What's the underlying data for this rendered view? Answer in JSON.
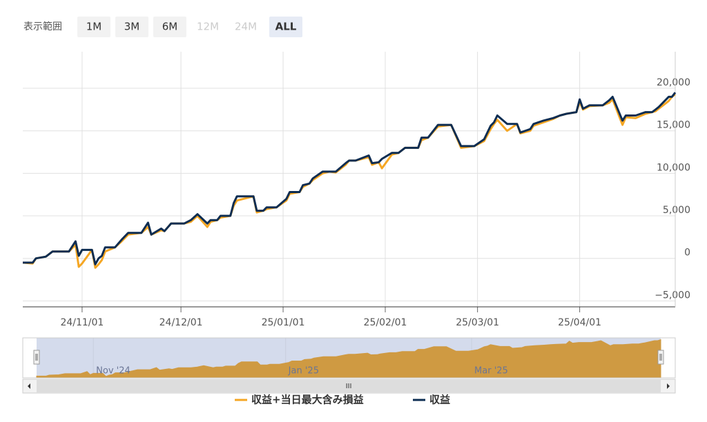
{
  "range_selector": {
    "label": "表示範囲",
    "buttons": [
      {
        "text": "1M",
        "state": "enabled"
      },
      {
        "text": "3M",
        "state": "enabled"
      },
      {
        "text": "6M",
        "state": "enabled"
      },
      {
        "text": "12M",
        "state": "disabled"
      },
      {
        "text": "24M",
        "state": "disabled"
      },
      {
        "text": "ALL",
        "state": "selected"
      }
    ]
  },
  "chart_data": {
    "type": "line",
    "x": [
      "2024-10-14",
      "2024-10-17",
      "2024-10-18",
      "2024-10-21",
      "2024-10-23",
      "2024-10-28",
      "2024-10-30",
      "2024-10-31",
      "2024-11-01",
      "2024-11-04",
      "2024-11-05",
      "2024-11-06",
      "2024-11-07",
      "2024-11-08",
      "2024-11-11",
      "2024-11-13",
      "2024-11-15",
      "2024-11-19",
      "2024-11-21",
      "2024-11-22",
      "2024-11-25",
      "2024-11-26",
      "2024-11-28",
      "2024-12-02",
      "2024-12-04",
      "2024-12-06",
      "2024-12-09",
      "2024-12-10",
      "2024-12-12",
      "2024-12-13",
      "2024-12-16",
      "2024-12-17",
      "2024-12-18",
      "2024-12-23",
      "2024-12-24",
      "2024-12-26",
      "2024-12-27",
      "2024-12-30",
      "2025-01-02",
      "2025-01-03",
      "2025-01-06",
      "2025-01-07",
      "2025-01-09",
      "2025-01-10",
      "2025-01-13",
      "2025-01-15",
      "2025-01-17",
      "2025-01-20",
      "2025-01-21",
      "2025-01-23",
      "2025-01-27",
      "2025-01-28",
      "2025-01-30",
      "2025-01-31",
      "2025-02-03",
      "2025-02-05",
      "2025-02-07",
      "2025-02-11",
      "2025-02-12",
      "2025-02-14",
      "2025-02-17",
      "2025-02-21",
      "2025-02-24",
      "2025-02-28",
      "2025-03-03",
      "2025-03-05",
      "2025-03-06",
      "2025-03-07",
      "2025-03-10",
      "2025-03-13",
      "2025-03-14",
      "2025-03-17",
      "2025-03-18",
      "2025-03-21",
      "2025-03-24",
      "2025-03-26",
      "2025-03-28",
      "2025-03-31",
      "2025-04-01",
      "2025-04-02",
      "2025-04-04",
      "2025-04-08",
      "2025-04-10",
      "2025-04-11",
      "2025-04-14",
      "2025-04-15",
      "2025-04-18",
      "2025-04-21",
      "2025-04-23",
      "2025-04-24",
      "2025-04-25",
      "2025-04-28",
      "2025-04-29",
      "2025-04-30"
    ],
    "series": [
      {
        "name": "収益+当日最大含み損益",
        "color": "#f5a623",
        "values": [
          -500,
          -600,
          0,
          200,
          800,
          800,
          1600,
          -1000,
          -600,
          1000,
          -1100,
          -700,
          -200,
          800,
          1300,
          2000,
          2800,
          3000,
          3700,
          2800,
          3300,
          3200,
          4100,
          4100,
          4300,
          5000,
          3700,
          4300,
          4500,
          4800,
          5000,
          6200,
          6800,
          7300,
          5400,
          5600,
          5800,
          6000,
          6800,
          7600,
          7800,
          8400,
          8800,
          9200,
          10000,
          10200,
          10100,
          11000,
          11500,
          11500,
          11900,
          11000,
          11300,
          10600,
          12200,
          12400,
          13000,
          13000,
          13900,
          14200,
          15500,
          15700,
          13000,
          13200,
          13800,
          15200,
          15800,
          16300,
          15000,
          15800,
          14700,
          15000,
          15600,
          16000,
          16400,
          16800,
          17000,
          17200,
          18400,
          17500,
          17900,
          18000,
          18300,
          18700,
          15700,
          16600,
          16500,
          17000,
          17200,
          17300,
          17600,
          18500,
          19000,
          19300
        ]
      },
      {
        "name": "収益",
        "color": "#0d2d52",
        "values": [
          -500,
          -500,
          0,
          200,
          800,
          800,
          2000,
          300,
          1000,
          1000,
          -700,
          0,
          300,
          1300,
          1300,
          2200,
          3000,
          3000,
          4200,
          2800,
          3500,
          3200,
          4100,
          4100,
          4500,
          5200,
          4100,
          4500,
          4500,
          5000,
          5000,
          6500,
          7300,
          7300,
          5600,
          5600,
          6000,
          6000,
          7000,
          7800,
          7800,
          8600,
          8800,
          9400,
          10200,
          10200,
          10200,
          11200,
          11500,
          11500,
          12100,
          11200,
          11300,
          11700,
          12400,
          12400,
          13000,
          13000,
          14200,
          14200,
          15700,
          15700,
          13200,
          13200,
          14000,
          15600,
          16000,
          16800,
          15800,
          15800,
          14800,
          15200,
          15800,
          16200,
          16500,
          16800,
          17000,
          17200,
          18700,
          17600,
          18000,
          18000,
          18600,
          19000,
          16200,
          16800,
          16800,
          17200,
          17200,
          17500,
          17800,
          19000,
          19000,
          19500
        ]
      }
    ],
    "xlim": [
      "2024-10-14",
      "2025-04-30"
    ],
    "xticks": [
      {
        "value": "2024-11-01",
        "label": "24/11/01"
      },
      {
        "value": "2024-12-01",
        "label": "24/12/01"
      },
      {
        "value": "2025-01-01",
        "label": "25/01/01"
      },
      {
        "value": "2025-02-01",
        "label": "25/02/01"
      },
      {
        "value": "2025-03-01",
        "label": "25/03/01"
      },
      {
        "value": "2025-04-01",
        "label": "25/04/01"
      }
    ],
    "ylim": [
      -5700,
      24300
    ],
    "yticks": [
      {
        "value": -5000,
        "label": "−5,000"
      },
      0,
      {
        "value": 5000,
        "label": "5,000"
      },
      {
        "value": 10000,
        "label": "10,000"
      },
      {
        "value": 15000,
        "label": "15,000"
      },
      {
        "value": 20000,
        "label": "20,000"
      }
    ],
    "grid": true,
    "navigator": {
      "series_index": 1,
      "color": "#cf9a42",
      "ylim": [
        -1500,
        20500
      ],
      "xticks": [
        {
          "value": "2024-11-01",
          "label": "Nov '24"
        },
        {
          "value": "2025-01-01",
          "label": "Jan '25"
        },
        {
          "value": "2025-03-01",
          "label": "Mar '25"
        }
      ]
    },
    "legend": "bottom"
  }
}
